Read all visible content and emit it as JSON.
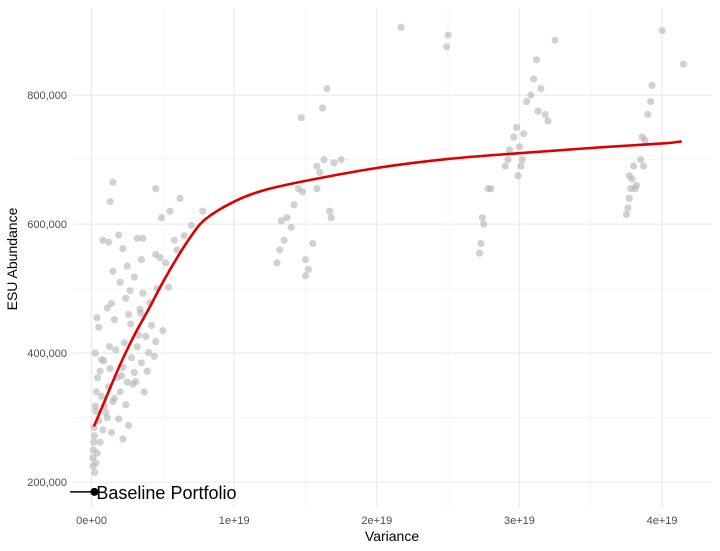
{
  "chart_data": {
    "type": "scatter",
    "title": "",
    "xlabel": "Variance",
    "ylabel": "ESU Abundance",
    "xlim": [
      -1.3e+18,
      4.35e+19
    ],
    "ylim": [
      160000,
      935000
    ],
    "x_ticks": [
      0,
      1e+19,
      2e+19,
      3e+19,
      4e+19
    ],
    "x_tick_labels": [
      "0e+00",
      "1e+19",
      "2e+19",
      "3e+19",
      "4e+19"
    ],
    "y_ticks": [
      200000,
      400000,
      600000,
      800000
    ],
    "y_tick_labels": [
      "200,000",
      "400,000",
      "600,000",
      "800,000"
    ],
    "grid": true,
    "colors": {
      "points": "#b3b3b3",
      "curve": "#dd0000",
      "grid_major": "#ebebeb",
      "grid_minor": "#f4f4f4"
    },
    "annotation": {
      "label": "Baseline Portfolio",
      "x": 2e+17,
      "y": 185000
    },
    "baseline_segment": {
      "x": [
        -1.5e+18,
        2e+17
      ],
      "y": 185000
    },
    "series": [
      {
        "type": "scatter",
        "points": [
          [
            2.2e+17,
            215000
          ],
          [
            3e+17,
            230000
          ],
          [
            1e+17,
            225000
          ],
          [
            4e+17,
            245000
          ],
          [
            6e+17,
            262000
          ],
          [
            2e+17,
            272000
          ],
          [
            8e+17,
            281000
          ],
          [
            5e+17,
            295000
          ],
          [
            1.1e+18,
            300000
          ],
          [
            3e+17,
            310000
          ],
          [
            9e+17,
            318000
          ],
          [
            1.5e+18,
            325000
          ],
          [
            7e+17,
            333000
          ],
          [
            2e+18,
            340000
          ],
          [
            1.2e+18,
            348000
          ],
          [
            2.5e+18,
            355000
          ],
          [
            1.8e+18,
            362000
          ],
          [
            3e+18,
            370000
          ],
          [
            2.2e+18,
            378000
          ],
          [
            3.5e+18,
            385000
          ],
          [
            2.8e+18,
            393000
          ],
          [
            4e+18,
            401000
          ],
          [
            3.2e+18,
            410000
          ],
          [
            4.5e+18,
            418000
          ],
          [
            3.8e+18,
            426000
          ],
          [
            5e+18,
            435000
          ],
          [
            4.2e+18,
            443000
          ],
          [
            1.6e+18,
            452000
          ],
          [
            2.6e+18,
            460000
          ],
          [
            3.4e+18,
            468000
          ],
          [
            1.4e+18,
            477000
          ],
          [
            2.4e+18,
            485000
          ],
          [
            3.6e+18,
            493000
          ],
          [
            4.6e+18,
            500000
          ],
          [
            2e+18,
            510000
          ],
          [
            3e+18,
            518000
          ],
          [
            1.5e+18,
            527000
          ],
          [
            2.5e+18,
            535000
          ],
          [
            3.5e+18,
            545000
          ],
          [
            4.5e+18,
            553000
          ],
          [
            2.2e+18,
            562000
          ],
          [
            1.2e+18,
            572000
          ],
          [
            3.2e+18,
            578000
          ],
          [
            5.2e+18,
            540000
          ],
          [
            6e+18,
            560000
          ],
          [
            6.5e+18,
            582000
          ],
          [
            5.5e+18,
            620000
          ],
          [
            6.2e+18,
            640000
          ],
          [
            4.5e+18,
            655000
          ],
          [
            1.5e+18,
            665000
          ],
          [
            1.3e+18,
            635000
          ],
          [
            7.8e+18,
            620000
          ],
          [
            3.6e+18,
            578000
          ],
          [
            8e+17,
            575000
          ],
          [
            1.9e+18,
            583000
          ],
          [
            4.8e+18,
            548000
          ],
          [
            2.7e+18,
            497000
          ],
          [
            1.1e+18,
            470000
          ],
          [
            3.8e+17,
            455000
          ],
          [
            5e+17,
            440000
          ],
          [
            2.5e+17,
            400000
          ],
          [
            7e+17,
            390000
          ],
          [
            1.3e+18,
            376000
          ],
          [
            2.1e+18,
            365000
          ],
          [
            2.9e+18,
            352000
          ],
          [
            3.7e+18,
            340000
          ],
          [
            1.6e+18,
            330000
          ],
          [
            2.4e+18,
            320000
          ],
          [
            1e+18,
            308000
          ],
          [
            1.9e+18,
            298000
          ],
          [
            2.6e+18,
            288000
          ],
          [
            1.4e+18,
            277000
          ],
          [
            2.2e+18,
            267000
          ],
          [
            3.1e+18,
            356000
          ],
          [
            3.9e+18,
            372000
          ],
          [
            4.4e+18,
            395000
          ],
          [
            1.7e+18,
            405000
          ],
          [
            2.3e+18,
            416000
          ],
          [
            3.3e+18,
            428000
          ],
          [
            1.8e+17,
            285000
          ],
          [
            1.6e+17,
            262000
          ],
          [
            1.2e+17,
            250000
          ],
          [
            2.8e+17,
            318000
          ],
          [
            3.4e+17,
            340000
          ],
          [
            4.2e+17,
            362000
          ],
          [
            9e+16,
            238000
          ],
          [
            6e+17,
            372000
          ],
          [
            8.5e+17,
            388000
          ],
          [
            1.25e+18,
            410000
          ],
          [
            2.75e+18,
            445000
          ],
          [
            3.45e+18,
            462000
          ],
          [
            4.1e+18,
            478000
          ],
          [
            5.4e+18,
            502000
          ],
          [
            5.8e+18,
            575000
          ],
          [
            7e+18,
            598000
          ],
          [
            4.9e+18,
            610000
          ],
          [
            1.3e+19,
            540000
          ],
          [
            1.32e+19,
            560000
          ],
          [
            1.35e+19,
            575000
          ],
          [
            1.4e+19,
            595000
          ],
          [
            1.37e+19,
            610000
          ],
          [
            1.42e+19,
            630000
          ],
          [
            1.45e+19,
            655000
          ],
          [
            1.47e+19,
            765000
          ],
          [
            1.5e+19,
            545000
          ],
          [
            1.52e+19,
            530000
          ],
          [
            1.55e+19,
            570000
          ],
          [
            1.58e+19,
            690000
          ],
          [
            1.6e+19,
            680000
          ],
          [
            1.62e+19,
            780000
          ],
          [
            1.65e+19,
            810000
          ],
          [
            1.67e+19,
            620000
          ],
          [
            1.7e+19,
            695000
          ],
          [
            1.75e+19,
            700000
          ],
          [
            1.58e+19,
            655000
          ],
          [
            1.63e+19,
            700000
          ],
          [
            1.48e+19,
            650000
          ],
          [
            1.33e+19,
            605000
          ],
          [
            1.68e+19,
            610000
          ],
          [
            1.5e+19,
            520000
          ],
          [
            2.17e+19,
            905000
          ],
          [
            2.5e+19,
            893000
          ],
          [
            2.49e+19,
            875000
          ],
          [
            2.72e+19,
            555000
          ],
          [
            2.73e+19,
            570000
          ],
          [
            2.75e+19,
            600000
          ],
          [
            2.74e+19,
            610000
          ],
          [
            2.78e+19,
            655000
          ],
          [
            2.8e+19,
            655000
          ],
          [
            2.9e+19,
            690000
          ],
          [
            2.92e+19,
            700000
          ],
          [
            2.93e+19,
            715000
          ],
          [
            2.96e+19,
            735000
          ],
          [
            2.98e+19,
            750000
          ],
          [
            3e+19,
            720000
          ],
          [
            3.02e+19,
            700000
          ],
          [
            3.01e+19,
            690000
          ],
          [
            2.99e+19,
            675000
          ],
          [
            3.03e+19,
            740000
          ],
          [
            3.05e+19,
            790000
          ],
          [
            3.08e+19,
            800000
          ],
          [
            3.1e+19,
            825000
          ],
          [
            3.12e+19,
            855000
          ],
          [
            3.15e+19,
            810000
          ],
          [
            3.18e+19,
            770000
          ],
          [
            3.2e+19,
            760000
          ],
          [
            3.25e+19,
            885000
          ],
          [
            3.13e+19,
            775000
          ],
          [
            3.75e+19,
            615000
          ],
          [
            3.76e+19,
            625000
          ],
          [
            3.77e+19,
            640000
          ],
          [
            3.78e+19,
            655000
          ],
          [
            3.79e+19,
            670000
          ],
          [
            3.8e+19,
            690000
          ],
          [
            3.82e+19,
            660000
          ],
          [
            3.85e+19,
            700000
          ],
          [
            3.86e+19,
            735000
          ],
          [
            3.88e+19,
            730000
          ],
          [
            3.9e+19,
            770000
          ],
          [
            3.92e+19,
            790000
          ],
          [
            3.93e+19,
            815000
          ],
          [
            4e+19,
            900000
          ],
          [
            4.15e+19,
            848000
          ],
          [
            3.87e+19,
            690000
          ],
          [
            3.81e+19,
            655000
          ],
          [
            3.77e+19,
            675000
          ]
        ]
      },
      {
        "type": "line",
        "name": "",
        "x": [
          2e+17,
          1e+18,
          2e+18,
          3e+18,
          4e+18,
          5e+18,
          6e+18,
          7e+18,
          8e+18,
          1e+19,
          1.2e+19,
          1.5e+19,
          2e+19,
          2.5e+19,
          3e+19,
          3.5e+19,
          4e+19,
          4.13e+19
        ],
        "y": [
          288000,
          330000,
          382000,
          428000,
          468000,
          510000,
          548000,
          582000,
          608000,
          635000,
          652000,
          667000,
          687000,
          701000,
          710000,
          718000,
          725000,
          728000
        ]
      }
    ]
  }
}
